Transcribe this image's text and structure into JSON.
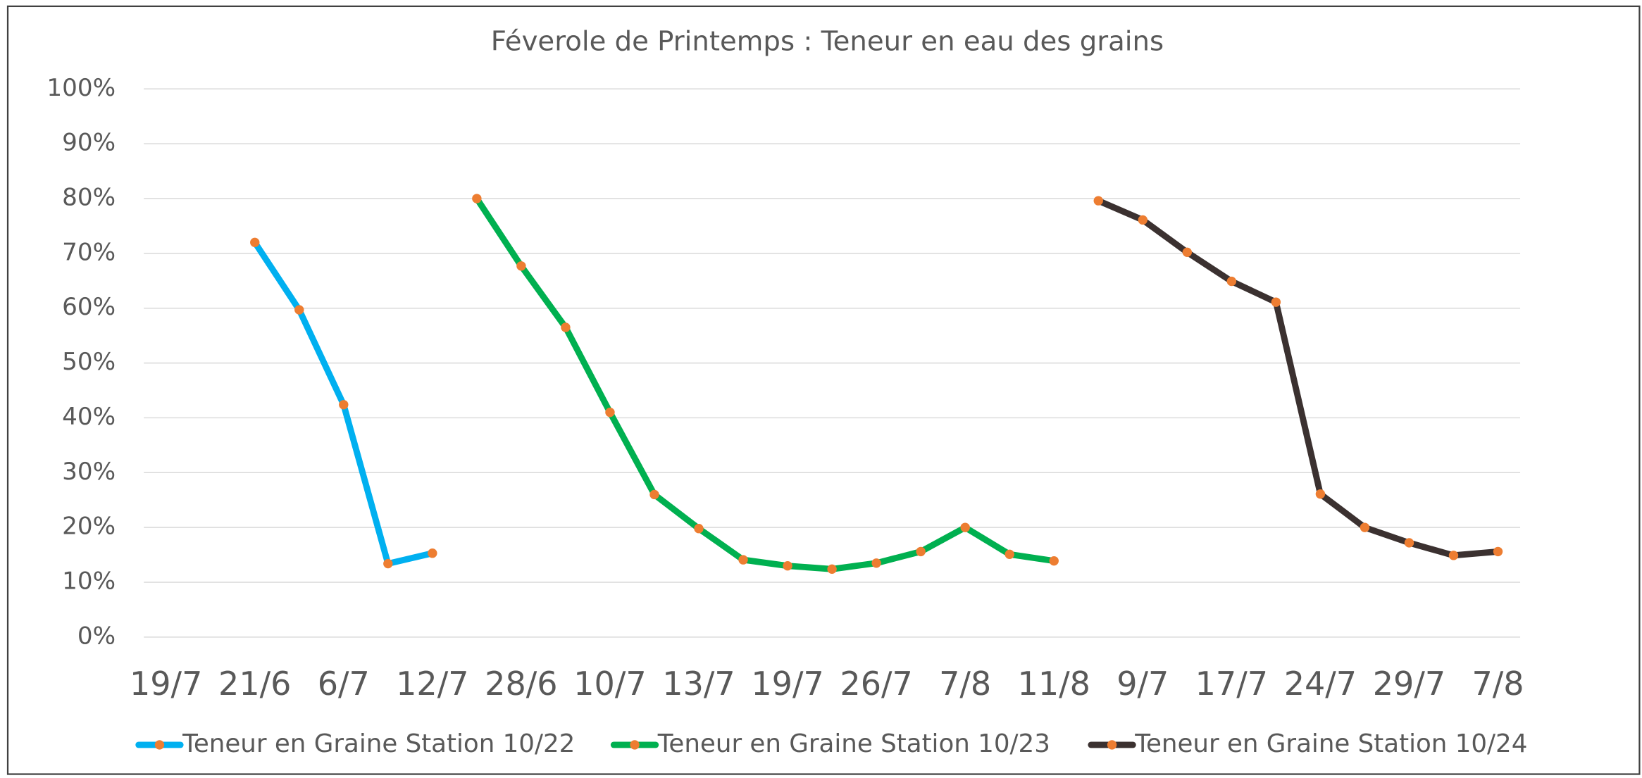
{
  "chart_data": {
    "type": "line",
    "title": "Féverole de Printemps : Teneur en eau des grains",
    "categories": [
      "19/7",
      null,
      "21/6",
      null,
      "6/7",
      null,
      "12/7",
      null,
      "28/6",
      null,
      "10/7",
      null,
      "13/7",
      null,
      "19/7",
      null,
      "26/7",
      null,
      "7/8",
      null,
      "11/8",
      null,
      "9/7",
      null,
      "17/7",
      null,
      "24/7",
      null,
      "29/7",
      null,
      "7/8"
    ],
    "series": [
      {
        "name": "Teneur en Graine Station 10/22",
        "color": "#00b0f0",
        "marker_color": "#ed7d31",
        "values": [
          null,
          null,
          72,
          59.7,
          42.4,
          13.4,
          15.3,
          null,
          null,
          null,
          null,
          null,
          null,
          null,
          null,
          null,
          null,
          null,
          null,
          null,
          null,
          null,
          null,
          null,
          null,
          null,
          null,
          null,
          null,
          null,
          null
        ]
      },
      {
        "name": "Teneur en Graine Station 10/23",
        "color": "#00b050",
        "marker_color": "#ed7d31",
        "values": [
          null,
          null,
          null,
          null,
          null,
          null,
          null,
          80,
          67.7,
          56.5,
          41,
          26,
          19.8,
          14.1,
          13,
          12.4,
          13.5,
          15.6,
          20,
          15.1,
          13.9,
          null,
          null,
          null,
          null,
          null,
          null,
          null,
          null,
          null,
          null
        ]
      },
      {
        "name": "Teneur en Graine Station 10/24",
        "color": "#3b3130",
        "marker_color": "#ed7d31",
        "values": [
          null,
          null,
          null,
          null,
          null,
          null,
          null,
          null,
          null,
          null,
          null,
          null,
          null,
          null,
          null,
          null,
          null,
          null,
          null,
          null,
          null,
          79.6,
          76.1,
          70.2,
          64.9,
          61.1,
          26.1,
          20,
          17.2,
          14.9,
          15.6
        ]
      }
    ],
    "ylim": [
      0,
      100
    ],
    "yticks": [
      {
        "value": 0,
        "label": "0%"
      },
      {
        "value": 10,
        "label": "10%"
      },
      {
        "value": 20,
        "label": "20%"
      },
      {
        "value": 30,
        "label": "30%"
      },
      {
        "value": 40,
        "label": "40%"
      },
      {
        "value": 50,
        "label": "50%"
      },
      {
        "value": 60,
        "label": "60%"
      },
      {
        "value": 70,
        "label": "70%"
      },
      {
        "value": 80,
        "label": "80%"
      },
      {
        "value": 90,
        "label": "90%"
      },
      {
        "value": 100,
        "label": "100%"
      }
    ],
    "grid": true,
    "legend": "bottom"
  }
}
